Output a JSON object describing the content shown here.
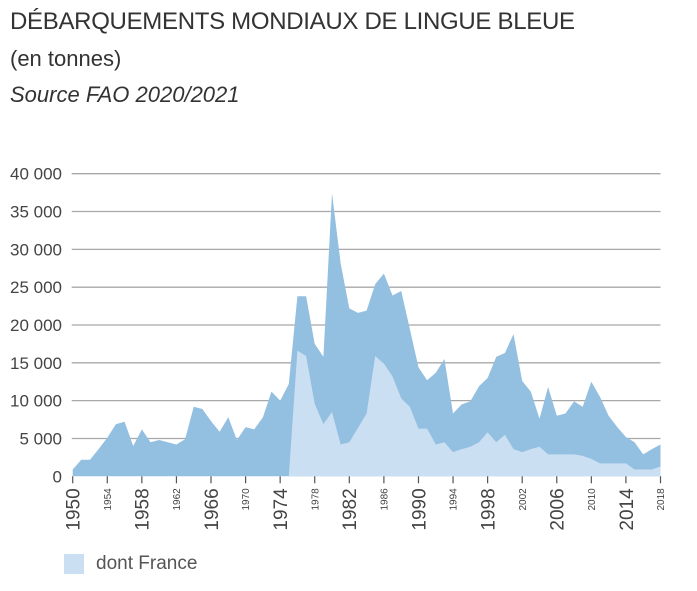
{
  "header": {
    "title": "DÉBARQUEMENTS MONDIAUX DE LINGUE BLEUE",
    "subtitle": "(en tonnes)",
    "source": "Source FAO 2020/2021"
  },
  "chart_data": {
    "type": "area",
    "stacked": false,
    "title": "DÉBARQUEMENTS MONDIAUX DE LINGUE BLEUE",
    "subtitle": "(en tonnes)",
    "xlim": [
      1950,
      2018
    ],
    "ylim": [
      0,
      40000
    ],
    "grid": true,
    "legend_position": "bottom-left",
    "y_ticks": [
      0,
      5000,
      10000,
      15000,
      20000,
      25000,
      30000,
      35000,
      40000
    ],
    "y_tick_labels": [
      "0",
      "5 000",
      "10 000",
      "15 000",
      "20 000",
      "25 000",
      "30 000",
      "35 000",
      "40 000"
    ],
    "x_ticks_major": [
      "1950",
      "1958",
      "1966",
      "1974",
      "1982",
      "1990",
      "1998",
      "2006",
      "2014"
    ],
    "x_ticks_minor": [
      "1954",
      "1962",
      "1970",
      "1978",
      "1986",
      "1994",
      "2002",
      "2010",
      "2018"
    ],
    "x": [
      1950,
      1951,
      1952,
      1953,
      1954,
      1955,
      1956,
      1957,
      1958,
      1959,
      1960,
      1961,
      1962,
      1963,
      1964,
      1965,
      1966,
      1967,
      1968,
      1969,
      1970,
      1971,
      1972,
      1973,
      1974,
      1975,
      1976,
      1977,
      1978,
      1979,
      1980,
      1981,
      1982,
      1983,
      1984,
      1985,
      1986,
      1987,
      1988,
      1989,
      1990,
      1991,
      1992,
      1993,
      1994,
      1995,
      1996,
      1997,
      1998,
      1999,
      2000,
      2001,
      2002,
      2003,
      2004,
      2005,
      2006,
      2007,
      2008,
      2009,
      2010,
      2011,
      2012,
      2013,
      2014,
      2015,
      2016,
      2017,
      2018
    ],
    "series": [
      {
        "key": "total",
        "color": "#93bfe1",
        "values": [
          900,
          2200,
          2200,
          3600,
          5100,
          6900,
          7200,
          4000,
          6200,
          4500,
          4800,
          4500,
          4200,
          4900,
          9200,
          8900,
          7300,
          5900,
          7800,
          4800,
          6500,
          6200,
          7800,
          11200,
          10000,
          12200,
          23800,
          23800,
          17500,
          15800,
          37400,
          28100,
          22200,
          21600,
          21900,
          25400,
          26800,
          23900,
          24500,
          19500,
          14400,
          12700,
          13700,
          15500,
          8300,
          9500,
          9900,
          11900,
          13000,
          15800,
          16300,
          18800,
          12600,
          11200,
          7600,
          11800,
          8000,
          8300,
          9900,
          9200,
          12500,
          10500,
          8000,
          6500,
          5200,
          4500,
          2900,
          3600,
          4200
        ]
      },
      {
        "key": "france",
        "name": "dont France",
        "color": "#cbdff3",
        "values": [
          0,
          0,
          0,
          0,
          0,
          0,
          0,
          0,
          0,
          0,
          0,
          0,
          0,
          0,
          0,
          0,
          0,
          0,
          0,
          0,
          0,
          0,
          0,
          0,
          0,
          0,
          16600,
          15900,
          9600,
          6900,
          8500,
          4200,
          4500,
          6400,
          8300,
          15900,
          14900,
          13200,
          10300,
          9200,
          6300,
          6300,
          4200,
          4500,
          3200,
          3600,
          3900,
          4500,
          5800,
          4500,
          5500,
          3600,
          3200,
          3600,
          3900,
          2900,
          2900,
          2900,
          2900,
          2700,
          2300,
          1700,
          1700,
          1700,
          1700,
          900,
          900,
          900,
          1300
        ]
      }
    ]
  },
  "legend": {
    "label": "dont France",
    "color": "#cbdff3"
  }
}
